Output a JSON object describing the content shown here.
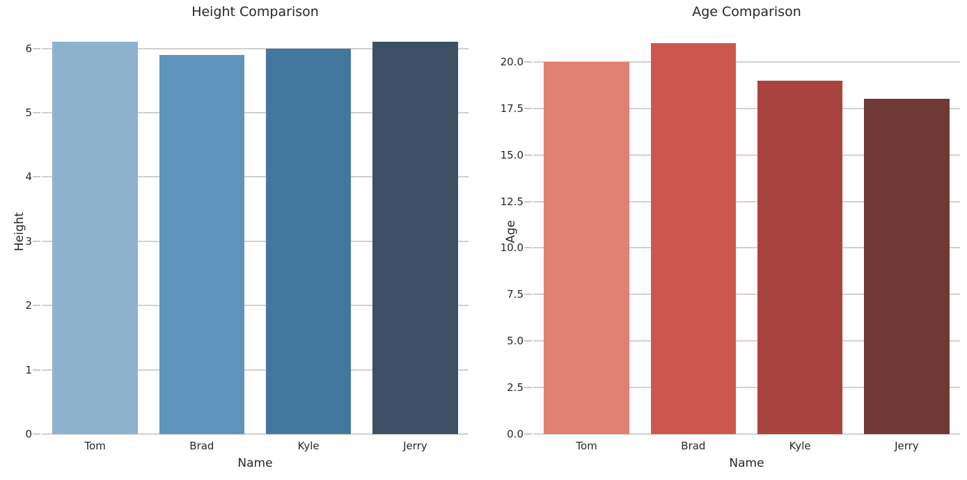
{
  "figure": {
    "background": "#ffffff",
    "grid_color": "#d0d0d0",
    "tick_mark_color": "#c9c9c9",
    "text_color": "#262626"
  },
  "chart_data": [
    {
      "type": "bar",
      "title": "Height Comparison",
      "xlabel": "Name",
      "ylabel": "Height",
      "categories": [
        "Tom",
        "Brad",
        "Kyle",
        "Jerry"
      ],
      "values": [
        6.1,
        5.9,
        6.0,
        6.1
      ],
      "bar_colors": [
        "#8cb2ce",
        "#5f94bd",
        "#44779d",
        "#3d5065"
      ],
      "ylim": [
        0,
        6.3
      ],
      "yticks": [
        0,
        1,
        2,
        3,
        4,
        5,
        6
      ],
      "ytick_labels": [
        "0",
        "1",
        "2",
        "3",
        "4",
        "5",
        "6"
      ],
      "grid": true,
      "legend": false
    },
    {
      "type": "bar",
      "title": "Age Comparison",
      "xlabel": "Name",
      "ylabel": "Age",
      "categories": [
        "Tom",
        "Brad",
        "Kyle",
        "Jerry"
      ],
      "values": [
        20,
        21,
        19,
        18
      ],
      "bar_colors": [
        "#df8273",
        "#cb584e",
        "#a9433d",
        "#703a36"
      ],
      "ylim": [
        0,
        21.75
      ],
      "yticks": [
        0,
        2.5,
        5,
        7.5,
        10,
        12.5,
        15,
        17.5,
        20
      ],
      "ytick_labels": [
        "0.0",
        "2.5",
        "5.0",
        "7.5",
        "10.0",
        "12.5",
        "15.0",
        "17.5",
        "20.0"
      ],
      "grid": true,
      "legend": false
    }
  ]
}
